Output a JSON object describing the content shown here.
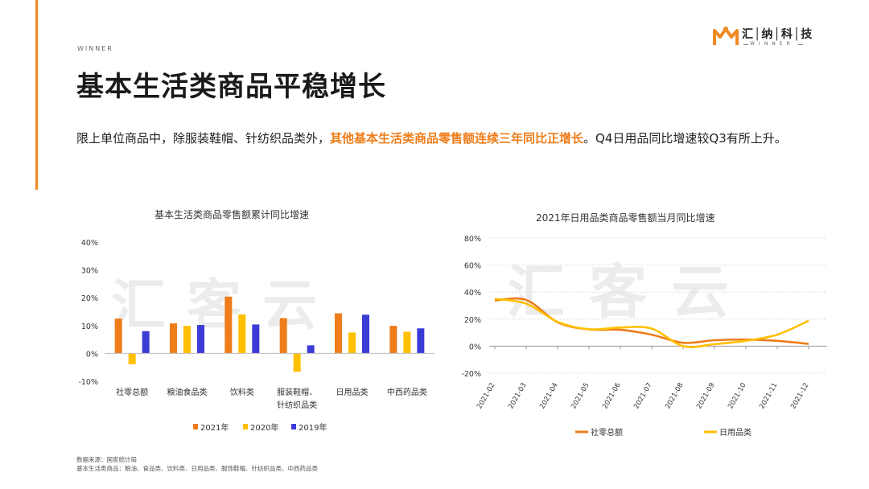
{
  "header": {
    "brand_small": "WINNER",
    "title": "基本生活类商品平稳增长",
    "desc_pre": "限上单位商品中，除服装鞋帽、针纺织品类外，",
    "desc_highlight": "其他基本生活类商品零售额连续三年同比正增长",
    "desc_post": "。Q4日用品同比增速较Q3有所上升。",
    "logo_text": "汇│纳│科│技",
    "logo_sub": "WINNER"
  },
  "watermark": "汇客云",
  "colors": {
    "accent": "#f08a24",
    "c2021": "#ee7d1a",
    "c2020": "#ffc000",
    "c2019": "#3b3bd6",
    "retail": "#ee7d1a",
    "daily": "#ffc000"
  },
  "source": {
    "line1": "数据来源：国家统计局",
    "line2": "基本生活类商品：粮油、食品类、饮料类、日用品类、服饰鞋帽、针纺织品类、中西药品类"
  },
  "chart_data": [
    {
      "type": "bar",
      "title": "基本生活类商品零售额累计同比增速",
      "categories": [
        "社零总额",
        "粮油食品类",
        "饮料类",
        "服装鞋帽、针纺织品类",
        "日用品类",
        "中西药品类"
      ],
      "category_lines": [
        [
          "社零总额"
        ],
        [
          "粮油食品类"
        ],
        [
          "饮料类"
        ],
        [
          "服装鞋帽、",
          "针纺织品类"
        ],
        [
          "日用品类"
        ],
        [
          "中西药品类"
        ]
      ],
      "series": [
        {
          "name": "2021年",
          "values": [
            12.5,
            10.8,
            20.4,
            12.7,
            14.4,
            9.9
          ]
        },
        {
          "name": "2020年",
          "values": [
            -3.9,
            9.9,
            14.0,
            -6.6,
            7.5,
            7.8
          ]
        },
        {
          "name": "2019年",
          "values": [
            8.0,
            10.2,
            10.4,
            2.9,
            13.9,
            9.0
          ]
        }
      ],
      "ylim": [
        -10,
        40
      ],
      "yticks": [
        "-10%",
        "0%",
        "10%",
        "20%",
        "30%",
        "40%"
      ],
      "legend_position": "bottom"
    },
    {
      "type": "line",
      "title": "2021年日用品类商品零售额当月同比增速",
      "x": [
        "2021-02",
        "2021-03",
        "2021-04",
        "2021-05",
        "2021-06",
        "2021-07",
        "2021-08",
        "2021-09",
        "2021-10",
        "2021-11",
        "2021-12"
      ],
      "series": [
        {
          "name": "社零总额",
          "values": [
            33.8,
            34.2,
            17.7,
            12.4,
            12.1,
            8.5,
            2.5,
            4.4,
            4.9,
            3.9,
            1.7
          ]
        },
        {
          "name": "日用品类",
          "values": [
            35.0,
            31.5,
            18.0,
            12.5,
            13.8,
            13.0,
            0.0,
            1.5,
            4.0,
            8.5,
            18.8
          ]
        }
      ],
      "ylim": [
        -20,
        80
      ],
      "yticks": [
        "-20%",
        "0%",
        "20%",
        "40%",
        "60%",
        "80%"
      ],
      "legend_position": "bottom"
    }
  ]
}
